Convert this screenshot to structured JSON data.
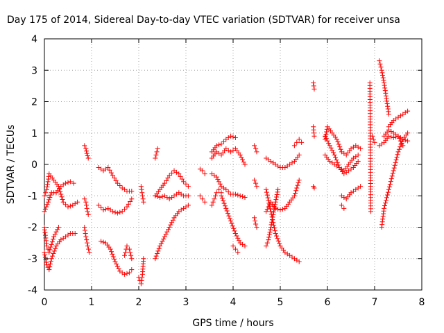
{
  "chart_data": {
    "type": "scatter",
    "title": "Day 175 of 2014, Sidereal Day-to-day VTEC variation (SDTVAR) for receiver unsa",
    "xlabel": "GPS time / hours",
    "ylabel": "SDTVAR / TECUs",
    "xlim": [
      0,
      8
    ],
    "ylim": [
      -4,
      4
    ],
    "xticks": [
      0,
      1,
      2,
      3,
      4,
      5,
      6,
      7,
      8
    ],
    "yticks": [
      -4,
      -3,
      -2,
      -1,
      0,
      1,
      2,
      3,
      4
    ],
    "xtick_labels": [
      "0",
      "1",
      "2",
      "3",
      "4",
      "5",
      "6",
      "7",
      "8"
    ],
    "ytick_labels": [
      "-4",
      "-3",
      "-2",
      "-1",
      "0",
      "1",
      "2",
      "3",
      "4"
    ],
    "grid": true,
    "marker": "+",
    "color": "#ff0000",
    "series": [
      {
        "name": "t0a",
        "x": [
          0.0,
          0.08,
          0.15,
          0.25,
          0.35,
          0.45,
          0.55,
          0.62
        ],
        "y": [
          -1.5,
          -1.2,
          -0.9,
          -0.9,
          -0.7,
          -0.6,
          -0.55,
          -0.6
        ]
      },
      {
        "name": "t0b",
        "x": [
          0.0,
          0.05,
          0.1,
          0.2,
          0.3,
          0.4,
          0.5,
          0.6,
          0.7
        ],
        "y": [
          -1.0,
          -0.8,
          -0.3,
          -0.5,
          -0.7,
          -1.2,
          -1.35,
          -1.3,
          -1.2
        ]
      },
      {
        "name": "t0c",
        "x": [
          0.0,
          0.05,
          0.1,
          0.15,
          0.25,
          0.35,
          0.45,
          0.55,
          0.65
        ],
        "y": [
          -2.8,
          -3.2,
          -3.35,
          -3.0,
          -2.6,
          -2.4,
          -2.3,
          -2.2,
          -2.2
        ]
      },
      {
        "name": "t0d",
        "x": [
          0.0,
          0.05,
          0.1,
          0.2,
          0.3
        ],
        "y": [
          -2.0,
          -2.6,
          -2.8,
          -2.3,
          -2.0
        ]
      },
      {
        "name": "t1a",
        "x": [
          0.85,
          0.88,
          0.9,
          0.93
        ],
        "y": [
          0.6,
          0.5,
          0.35,
          0.2
        ]
      },
      {
        "name": "t1b",
        "x": [
          0.85,
          0.88,
          0.9,
          0.93
        ],
        "y": [
          -1.1,
          -1.2,
          -1.4,
          -1.6
        ]
      },
      {
        "name": "t1c",
        "x": [
          0.85,
          0.88,
          0.92,
          0.95
        ],
        "y": [
          -2.0,
          -2.3,
          -2.6,
          -2.8
        ]
      },
      {
        "name": "t1d",
        "x": [
          1.15,
          1.25,
          1.35,
          1.45,
          1.55,
          1.65,
          1.75,
          1.85
        ],
        "y": [
          -0.1,
          -0.2,
          -0.1,
          -0.35,
          -0.6,
          -0.75,
          -0.85,
          -0.85
        ]
      },
      {
        "name": "t1e",
        "x": [
          1.15,
          1.25,
          1.35,
          1.45,
          1.55,
          1.65,
          1.75,
          1.85
        ],
        "y": [
          -1.3,
          -1.45,
          -1.4,
          -1.5,
          -1.55,
          -1.5,
          -1.35,
          -1.1
        ]
      },
      {
        "name": "t1f",
        "x": [
          1.2,
          1.3,
          1.4,
          1.5,
          1.6,
          1.7,
          1.8,
          1.85
        ],
        "y": [
          -2.45,
          -2.5,
          -2.7,
          -3.1,
          -3.4,
          -3.5,
          -3.45,
          -3.35
        ]
      },
      {
        "name": "t1g",
        "x": [
          1.7,
          1.75,
          1.8,
          1.85
        ],
        "y": [
          -2.9,
          -2.6,
          -2.7,
          -3.0
        ]
      },
      {
        "name": "t2a",
        "x": [
          2.0,
          2.05,
          2.08,
          2.1
        ],
        "y": [
          -3.6,
          -3.8,
          -3.5,
          -3.0
        ]
      },
      {
        "name": "t2b",
        "x": [
          2.05,
          2.08,
          2.1
        ],
        "y": [
          -0.7,
          -1.0,
          -1.2
        ]
      },
      {
        "name": "t2c",
        "x": [
          2.35,
          2.45,
          2.55,
          2.65,
          2.75,
          2.85,
          2.95,
          3.05
        ],
        "y": [
          -1.0,
          -0.8,
          -0.6,
          -0.35,
          -0.2,
          -0.3,
          -0.55,
          -0.7
        ]
      },
      {
        "name": "t2d",
        "x": [
          2.35,
          2.45,
          2.55,
          2.65,
          2.75,
          2.85,
          2.95,
          3.05
        ],
        "y": [
          -1.0,
          -1.05,
          -1.0,
          -1.1,
          -1.0,
          -0.9,
          -1.0,
          -1.0
        ]
      },
      {
        "name": "t2e",
        "x": [
          2.35,
          2.45,
          2.55,
          2.65,
          2.75,
          2.85,
          2.95,
          3.05
        ],
        "y": [
          -3.0,
          -2.6,
          -2.3,
          -2.0,
          -1.7,
          -1.5,
          -1.4,
          -1.3
        ]
      },
      {
        "name": "t2f",
        "x": [
          2.35,
          2.4
        ],
        "y": [
          0.2,
          0.5
        ]
      },
      {
        "name": "t3a",
        "x": [
          3.3,
          3.35,
          3.4
        ],
        "y": [
          -0.15,
          -0.2,
          -0.3
        ]
      },
      {
        "name": "t3b",
        "x": [
          3.3,
          3.35,
          3.4
        ],
        "y": [
          -1.0,
          -1.1,
          -1.2
        ]
      },
      {
        "name": "t3c",
        "x": [
          3.55,
          3.65,
          3.75,
          3.85,
          3.95,
          4.05,
          4.15,
          4.25
        ],
        "y": [
          0.2,
          0.4,
          0.3,
          0.5,
          0.4,
          0.5,
          0.3,
          0.0
        ]
      },
      {
        "name": "t3d",
        "x": [
          3.55,
          3.65,
          3.75,
          3.85,
          3.95,
          4.05
        ],
        "y": [
          0.4,
          0.6,
          0.65,
          0.8,
          0.9,
          0.85
        ]
      },
      {
        "name": "t3e",
        "x": [
          3.55,
          3.65,
          3.75,
          3.85,
          3.95,
          4.05,
          4.15,
          4.25
        ],
        "y": [
          -0.3,
          -0.4,
          -0.7,
          -0.8,
          -0.95,
          -0.95,
          -1.0,
          -1.05
        ]
      },
      {
        "name": "t3f",
        "x": [
          3.55,
          3.6,
          3.65,
          3.7,
          3.75
        ],
        "y": [
          -1.3,
          -1.1,
          -0.9,
          -0.8,
          -0.9
        ]
      },
      {
        "name": "t3g",
        "x": [
          3.75,
          3.85,
          3.95,
          4.05,
          4.15,
          4.25
        ],
        "y": [
          -1.0,
          -1.4,
          -1.8,
          -2.2,
          -2.5,
          -2.6
        ]
      },
      {
        "name": "t3h",
        "x": [
          4.0,
          4.05,
          4.1
        ],
        "y": [
          -2.6,
          -2.7,
          -2.8
        ]
      },
      {
        "name": "t4a",
        "x": [
          4.45,
          4.48,
          4.5
        ],
        "y": [
          0.6,
          0.5,
          0.4
        ]
      },
      {
        "name": "t4b",
        "x": [
          4.45,
          4.48,
          4.5
        ],
        "y": [
          -0.5,
          -0.6,
          -0.7
        ]
      },
      {
        "name": "t4c",
        "x": [
          4.45,
          4.48,
          4.5
        ],
        "y": [
          -1.7,
          -1.9,
          -2.0
        ]
      },
      {
        "name": "t4d",
        "x": [
          4.7,
          4.8,
          4.9,
          5.0,
          5.1,
          5.2,
          5.3,
          5.4
        ],
        "y": [
          -1.5,
          -1.2,
          -1.4,
          -1.45,
          -1.4,
          -1.2,
          -1.0,
          -0.5
        ]
      },
      {
        "name": "t4e",
        "x": [
          4.7,
          4.8,
          4.9,
          5.0,
          5.1,
          5.2,
          5.3,
          5.4
        ],
        "y": [
          0.2,
          0.1,
          0.0,
          -0.1,
          -0.1,
          0.0,
          0.1,
          0.3
        ]
      },
      {
        "name": "t4f",
        "x": [
          4.7,
          4.75,
          4.8,
          4.85,
          4.9,
          4.95
        ],
        "y": [
          -2.6,
          -2.4,
          -2.0,
          -1.6,
          -1.2,
          -0.8
        ]
      },
      {
        "name": "t4g",
        "x": [
          4.7,
          4.8,
          4.9,
          5.0,
          5.1,
          5.2,
          5.3,
          5.4
        ],
        "y": [
          -0.8,
          -1.5,
          -2.2,
          -2.6,
          -2.8,
          -2.9,
          -3.0,
          -3.1
        ]
      },
      {
        "name": "t4h",
        "x": [
          5.3,
          5.35,
          5.4,
          5.45
        ],
        "y": [
          0.6,
          0.7,
          0.8,
          0.7
        ]
      },
      {
        "name": "t5a",
        "x": [
          5.7,
          5.72
        ],
        "y": [
          2.6,
          2.4
        ]
      },
      {
        "name": "t5b",
        "x": [
          5.7,
          5.72
        ],
        "y": [
          1.2,
          0.9
        ]
      },
      {
        "name": "t5c",
        "x": [
          5.7,
          5.72
        ],
        "y": [
          -0.7,
          -0.75
        ]
      },
      {
        "name": "t6a",
        "x": [
          5.95,
          6.0,
          6.1,
          6.2,
          6.3,
          6.4,
          6.5,
          6.6,
          6.7
        ],
        "y": [
          0.8,
          1.2,
          1.0,
          0.8,
          0.4,
          0.3,
          0.5,
          0.6,
          0.5
        ]
      },
      {
        "name": "t6b",
        "x": [
          5.95,
          6.05,
          6.15,
          6.25,
          6.35,
          6.45,
          6.55,
          6.65
        ],
        "y": [
          0.3,
          0.1,
          0.0,
          -0.1,
          -0.2,
          0.0,
          0.2,
          0.3
        ]
      },
      {
        "name": "t6c",
        "x": [
          5.95,
          6.05,
          6.15,
          6.25,
          6.35,
          6.45,
          6.55,
          6.65
        ],
        "y": [
          0.9,
          0.6,
          0.3,
          -0.1,
          -0.3,
          -0.2,
          -0.1,
          0.1
        ]
      },
      {
        "name": "t6d",
        "x": [
          6.3,
          6.4,
          6.5,
          6.6,
          6.7
        ],
        "y": [
          -1.0,
          -1.1,
          -0.9,
          -0.8,
          -0.7
        ]
      },
      {
        "name": "t6e",
        "x": [
          6.3,
          6.35
        ],
        "y": [
          -1.3,
          -1.4
        ]
      },
      {
        "name": "t7a",
        "x": [
          6.9,
          6.92
        ],
        "y": [
          2.6,
          -1.5
        ]
      },
      {
        "name": "t7b",
        "x": [
          6.95,
          7.0
        ],
        "y": [
          0.9,
          0.7
        ]
      },
      {
        "name": "t7c",
        "x": [
          7.1,
          7.15,
          7.2,
          7.25,
          7.3
        ],
        "y": [
          3.3,
          3.0,
          2.6,
          2.1,
          1.6
        ]
      },
      {
        "name": "t7d",
        "x": [
          7.1,
          7.2,
          7.3,
          7.4,
          7.5,
          7.6,
          7.7
        ],
        "y": [
          0.6,
          0.7,
          0.9,
          0.85,
          0.9,
          0.8,
          0.75
        ]
      },
      {
        "name": "t7e",
        "x": [
          7.15,
          7.2,
          7.3,
          7.4,
          7.5,
          7.6,
          7.7
        ],
        "y": [
          -2.0,
          -1.4,
          -0.8,
          -0.2,
          0.4,
          0.8,
          1.0
        ]
      },
      {
        "name": "t7f",
        "x": [
          7.3,
          7.4,
          7.5,
          7.6,
          7.7
        ],
        "y": [
          1.2,
          1.4,
          1.5,
          1.6,
          1.7
        ]
      },
      {
        "name": "t7g",
        "x": [
          7.2,
          7.3,
          7.4,
          7.5,
          7.6
        ],
        "y": [
          0.9,
          1.1,
          1.0,
          0.9,
          0.6
        ]
      }
    ]
  }
}
